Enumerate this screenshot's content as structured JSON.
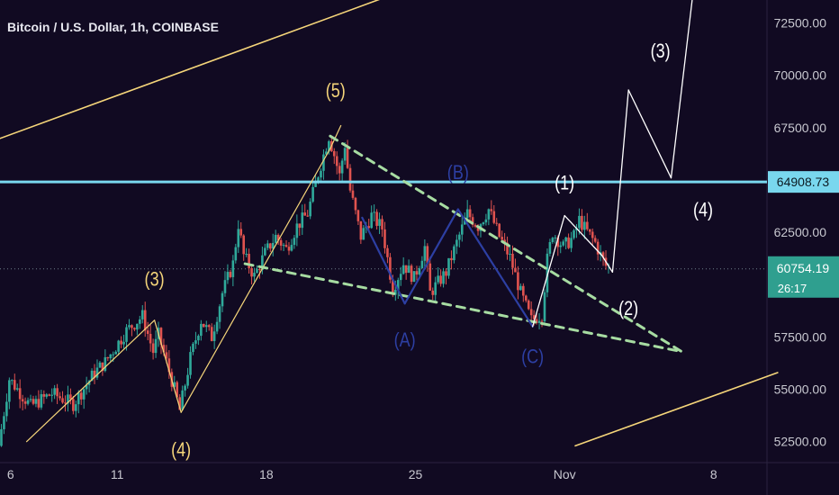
{
  "header": {
    "title": "Bitcoin / U.S. Dollar, 1h, COINBASE"
  },
  "colors": {
    "background": "#110a22",
    "candle_up": "#2fa99a",
    "candle_down": "#e0534f",
    "channel": "#f5d57a",
    "wedge": "#a7dca2",
    "resistance": "#79d7ee",
    "wave_blue": "#2d3fa3",
    "projection": "#ffffff",
    "text": "#c8c8d0",
    "price_badge": "#2f9f8f"
  },
  "chart_data": {
    "type": "candlestick",
    "ylim": [
      51500,
      73600
    ],
    "xlim": [
      "2024-10-05T12:00",
      "2024-11-10T12:00"
    ],
    "y_ticks": [
      "52500.00",
      "55000.00",
      "57500.00",
      "60000.00",
      "62500.00",
      "65000.00",
      "67500.00",
      "70000.00",
      "72500.00"
    ],
    "x_ticks": [
      {
        "date": "2024-10-06",
        "label": "6"
      },
      {
        "date": "2024-10-11",
        "label": "11"
      },
      {
        "date": "2024-10-18",
        "label": "18"
      },
      {
        "date": "2024-10-25",
        "label": "25"
      },
      {
        "date": "2024-11-01",
        "label": "Nov"
      },
      {
        "date": "2024-11-08",
        "label": "8"
      }
    ],
    "resistance": {
      "price": 64908.73,
      "label": "64908.73"
    },
    "last_price": {
      "price": 60754.19,
      "label": "60754.19",
      "countdown": "26:17"
    },
    "price_path": [
      [
        "2024-10-05T12:00",
        52300
      ],
      [
        "2024-10-06T00:00",
        55500
      ],
      [
        "2024-10-07T00:00",
        54200
      ],
      [
        "2024-10-08T00:00",
        54800
      ],
      [
        "2024-10-09T00:00",
        54300
      ],
      [
        "2024-10-10T00:00",
        55800
      ],
      [
        "2024-10-10T12:00",
        56300
      ],
      [
        "2024-10-11T12:00",
        57800
      ],
      [
        "2024-10-12T06:00",
        58500
      ],
      [
        "2024-10-12T18:00",
        56800
      ],
      [
        "2024-10-13T00:00",
        57600
      ],
      [
        "2024-10-13T18:00",
        55000
      ],
      [
        "2024-10-14T00:00",
        54000
      ],
      [
        "2024-10-14T12:00",
        56500
      ],
      [
        "2024-10-15T00:00",
        58300
      ],
      [
        "2024-10-15T12:00",
        57500
      ],
      [
        "2024-10-16T00:00",
        59600
      ],
      [
        "2024-10-16T12:00",
        61000
      ],
      [
        "2024-10-16T18:00",
        62900
      ],
      [
        "2024-10-17T00:00",
        61400
      ],
      [
        "2024-10-17T12:00",
        60400
      ],
      [
        "2024-10-18T00:00",
        61500
      ],
      [
        "2024-10-18T12:00",
        62300
      ],
      [
        "2024-10-19T00:00",
        61700
      ],
      [
        "2024-10-19T12:00",
        62800
      ],
      [
        "2024-10-20T00:00",
        63400
      ],
      [
        "2024-10-20T12:00",
        65300
      ],
      [
        "2024-10-21T00:00",
        67100
      ],
      [
        "2024-10-21T06:00",
        66200
      ],
      [
        "2024-10-21T12:00",
        65200
      ],
      [
        "2024-10-21T18:00",
        66700
      ],
      [
        "2024-10-22T00:00",
        64500
      ],
      [
        "2024-10-22T12:00",
        62300
      ],
      [
        "2024-10-23T00:00",
        63300
      ],
      [
        "2024-10-23T12:00",
        62700
      ],
      [
        "2024-10-24T00:00",
        59800
      ],
      [
        "2024-10-24T12:00",
        61000
      ],
      [
        "2024-10-25T00:00",
        60300
      ],
      [
        "2024-10-25T12:00",
        61800
      ],
      [
        "2024-10-25T18:00",
        59600
      ],
      [
        "2024-10-26T12:00",
        60600
      ],
      [
        "2024-10-27T00:00",
        62000
      ],
      [
        "2024-10-27T12:00",
        63400
      ],
      [
        "2024-10-28T00:00",
        62800
      ],
      [
        "2024-10-28T12:00",
        63600
      ],
      [
        "2024-10-29T00:00",
        62300
      ],
      [
        "2024-10-29T12:00",
        61300
      ],
      [
        "2024-10-30T00:00",
        59600
      ],
      [
        "2024-10-30T12:00",
        58300
      ],
      [
        "2024-10-31T00:00",
        58600
      ],
      [
        "2024-10-31T06:00",
        61200
      ],
      [
        "2024-10-31T12:00",
        62500
      ],
      [
        "2024-11-01T00:00",
        61800
      ],
      [
        "2024-11-01T12:00",
        62300
      ],
      [
        "2024-11-01T18:00",
        63100
      ],
      [
        "2024-11-02T00:00",
        62700
      ],
      [
        "2024-11-02T12:00",
        62000
      ],
      [
        "2024-11-02T18:00",
        61400
      ],
      [
        "2024-11-03T00:00",
        60900
      ]
    ],
    "channel_lines": [
      [
        [
          "2024-10-05T00:00",
          66800
        ],
        [
          "2024-10-23T12:00",
          73700
        ]
      ],
      [
        [
          "2024-11-01T12:00",
          52300
        ],
        [
          "2024-11-11T00:00",
          55800
        ]
      ]
    ],
    "impulse_lines": [
      [
        [
          "2024-10-06T18:00",
          52500
        ],
        [
          "2024-10-12T18:00",
          58300
        ]
      ],
      [
        [
          "2024-10-12T18:00",
          58300
        ],
        [
          "2024-10-14T00:00",
          53900
        ]
      ],
      [
        [
          "2024-10-14T00:00",
          53900
        ],
        [
          "2024-10-21T00:00",
          66500
        ]
      ],
      [
        [
          "2024-10-21T00:00",
          66500
        ],
        [
          "2024-10-21T12:00",
          67600
        ]
      ]
    ],
    "wedge_lines": [
      [
        [
          "2024-10-21T00:00",
          67100
        ],
        [
          "2024-11-06T12:00",
          56800
        ]
      ],
      [
        [
          "2024-10-17T00:00",
          61000
        ],
        [
          "2024-11-06T12:00",
          56800
        ]
      ]
    ],
    "abc_lines": [
      [
        [
          "2024-10-22T12:00",
          63200
        ],
        [
          "2024-10-24T12:00",
          59100
        ]
      ],
      [
        [
          "2024-10-24T12:00",
          59100
        ],
        [
          "2024-10-27T00:00",
          63600
        ]
      ],
      [
        [
          "2024-10-27T00:00",
          63600
        ],
        [
          "2024-10-30T12:00",
          58000
        ]
      ]
    ],
    "projection_lines": [
      [
        [
          "2024-10-30T12:00",
          58000
        ],
        [
          "2024-11-01T00:00",
          63300
        ]
      ],
      [
        [
          "2024-11-01T00:00",
          63300
        ],
        [
          "2024-11-02T18:00",
          61400
        ]
      ],
      [
        [
          "2024-11-02T18:00",
          61400
        ],
        [
          "2024-11-03T06:00",
          60600
        ]
      ],
      [
        [
          "2024-11-03T06:00",
          60600
        ],
        [
          "2024-11-04T00:00",
          69300
        ]
      ],
      [
        [
          "2024-11-04T00:00",
          69300
        ],
        [
          "2024-11-06T00:00",
          65100
        ]
      ],
      [
        [
          "2024-11-06T00:00",
          65100
        ],
        [
          "2024-11-07T00:00",
          73700
        ]
      ]
    ],
    "annotations": [
      {
        "text": "(3)",
        "t": "2024-10-12T18:00",
        "price": 60200,
        "color": "#f5d57a"
      },
      {
        "text": "(4)",
        "t": "2024-10-14T00:00",
        "price": 52050,
        "color": "#f5d57a"
      },
      {
        "text": "(5)",
        "t": "2024-10-21T06:00",
        "price": 69200,
        "color": "#f5d57a"
      },
      {
        "text": "(A)",
        "t": "2024-10-24T12:00",
        "price": 57300,
        "color": "#2d3fa3"
      },
      {
        "text": "(B)",
        "t": "2024-10-27T00:00",
        "price": 65300,
        "color": "#2d3fa3"
      },
      {
        "text": "(C)",
        "t": "2024-10-30T12:00",
        "price": 56500,
        "color": "#2d3fa3"
      },
      {
        "text": "(1)",
        "t": "2024-11-01T00:00",
        "price": 64800,
        "color": "#ffffff"
      },
      {
        "text": "(2)",
        "t": "2024-11-04T00:00",
        "price": 58800,
        "color": "#ffffff"
      },
      {
        "text": "(3)",
        "t": "2024-11-05T12:00",
        "price": 71100,
        "color": "#ffffff"
      },
      {
        "text": "(4)",
        "t": "2024-11-07T12:00",
        "price": 63500,
        "color": "#ffffff"
      }
    ]
  }
}
